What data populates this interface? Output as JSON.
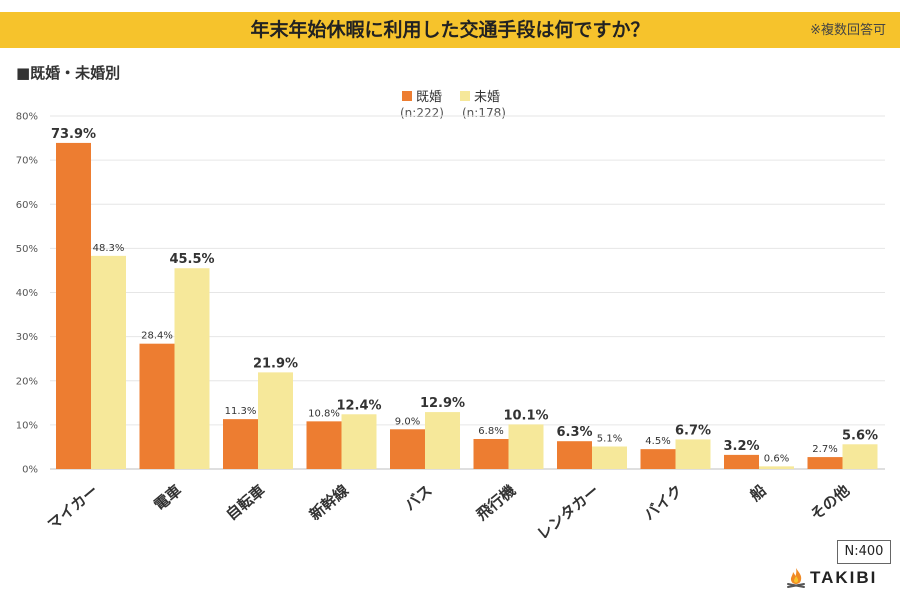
{
  "header": {
    "title": "年末年始休暇に利用した交通手段は何ですか？",
    "note": "※複数回答可"
  },
  "subtitle": "■既婚・未婚別",
  "footer": {
    "n_label": "N:400",
    "brand": "TAKIBI"
  },
  "colors": {
    "married": "#ed7d31",
    "unmarried": "#f6e89a",
    "unmarried_label": "#e0a21a",
    "header_bg": "#f6c32c"
  },
  "chart_data": {
    "type": "bar",
    "title": "年末年始休暇に利用した交通手段は何ですか？",
    "categories": [
      "マイカー",
      "電車",
      "自転車",
      "新幹線",
      "バス",
      "飛行機",
      "レンタカー",
      "バイク",
      "船",
      "その他"
    ],
    "series": [
      {
        "name": "既婚",
        "n": "(n:222)",
        "values": [
          73.9,
          28.4,
          11.3,
          10.8,
          9.0,
          6.8,
          6.3,
          4.5,
          3.2,
          2.7
        ],
        "labels": [
          "73.9%",
          "28.4%",
          "11.3%",
          "10.8%",
          "9.0%",
          "6.8%",
          "6.3%",
          "4.5%",
          "3.2%",
          "2.7%"
        ]
      },
      {
        "name": "未婚",
        "n": "(n:178)",
        "values": [
          48.3,
          45.5,
          21.9,
          12.4,
          12.9,
          10.1,
          5.1,
          6.7,
          0.6,
          5.6
        ],
        "labels": [
          "48.3%",
          "45.5%",
          "21.9%",
          "12.4%",
          "12.9%",
          "10.1%",
          "5.1%",
          "6.7%",
          "0.6%",
          "5.6%"
        ]
      }
    ],
    "yticks": [
      "0%",
      "10%",
      "20%",
      "30%",
      "40%",
      "50%",
      "60%",
      "70%",
      "80%"
    ],
    "ylim": [
      0,
      80
    ],
    "grid": true,
    "legend_position": "top-center"
  }
}
